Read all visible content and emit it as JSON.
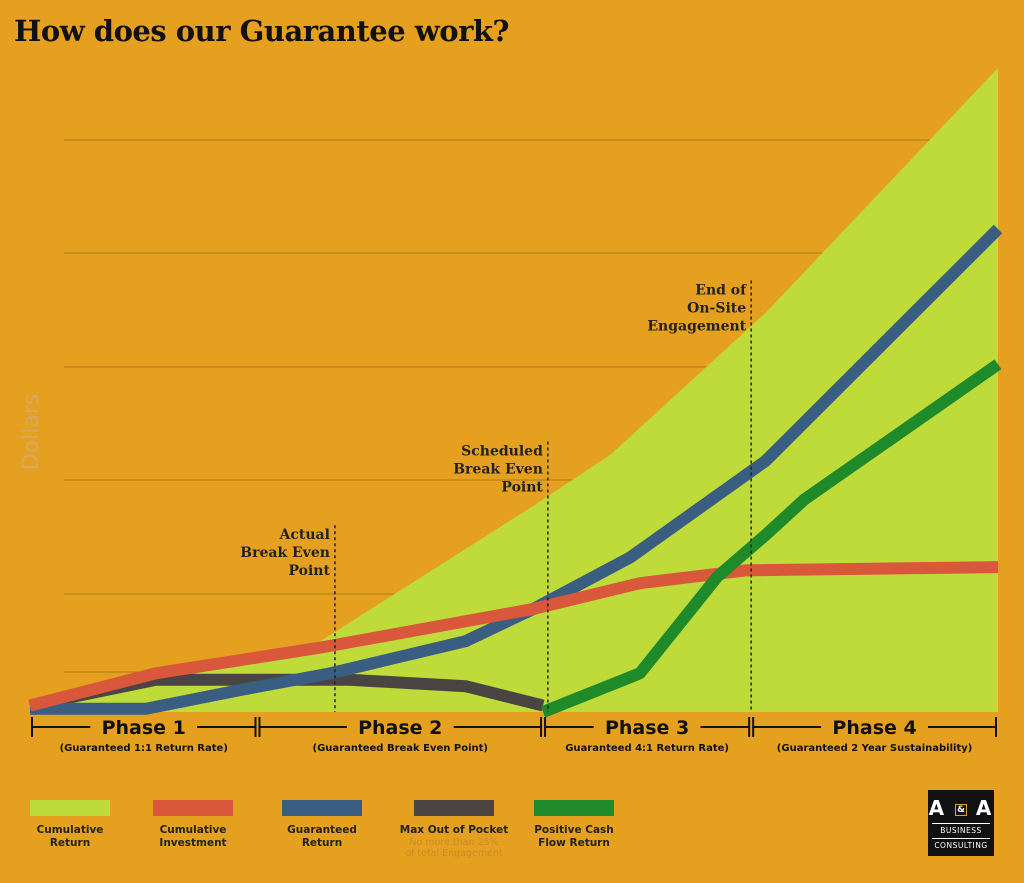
{
  "title": "How does our Guarantee work?",
  "colors": {
    "background": "#E5A020",
    "cumulative_return": "#BEDB3A",
    "cumulative_investment": "#D9573A",
    "guaranteed_return": "#3A5E82",
    "max_out_of_pocket": "#4A4542",
    "positive_cash_flow_return": "#1E8A2A"
  },
  "chart_data": {
    "type": "line",
    "ylabel": "Dollars",
    "xlabel": "",
    "x_range": [
      0,
      100
    ],
    "y_range": [
      0,
      100
    ],
    "grid": true,
    "series": [
      {
        "name": "Cumulative Return",
        "kind": "area",
        "points": [
          [
            0,
            0
          ],
          [
            30,
            11
          ],
          [
            52,
            32
          ],
          [
            60,
            40
          ],
          [
            76,
            62
          ],
          [
            100,
            100
          ]
        ]
      },
      {
        "name": "Cumulative Investment",
        "kind": "line",
        "points": [
          [
            0,
            1
          ],
          [
            13,
            6
          ],
          [
            30,
            10
          ],
          [
            52,
            16
          ],
          [
            63,
            20
          ],
          [
            74,
            22
          ],
          [
            100,
            22.5
          ]
        ]
      },
      {
        "name": "Guaranteed Return",
        "kind": "line",
        "points": [
          [
            0,
            0.5
          ],
          [
            12,
            0.5
          ],
          [
            22,
            3.5
          ],
          [
            31,
            6
          ],
          [
            45,
            11
          ],
          [
            52,
            16
          ],
          [
            62,
            24
          ],
          [
            76,
            39
          ],
          [
            100,
            75
          ]
        ]
      },
      {
        "name": "Max Out of Pocket",
        "kind": "line",
        "points": [
          [
            0,
            1
          ],
          [
            13,
            5
          ],
          [
            23,
            5
          ],
          [
            33,
            5
          ],
          [
            45,
            4
          ],
          [
            53,
            1
          ]
        ]
      },
      {
        "name": "Positive Cash Flow Return",
        "kind": "line",
        "points": [
          [
            53,
            0
          ],
          [
            63,
            6
          ],
          [
            71,
            21
          ],
          [
            76,
            27.5
          ],
          [
            80,
            33
          ],
          [
            100,
            54
          ]
        ]
      }
    ],
    "markers": [
      {
        "label_lines": [
          "Actual",
          "Break Even",
          "Point"
        ],
        "x": 31.5,
        "top": 29
      },
      {
        "label_lines": [
          "Scheduled",
          "Break Even",
          "Point"
        ],
        "x": 53.5,
        "top": 42
      },
      {
        "label_lines": [
          "End of",
          "On-Site",
          "Engagement"
        ],
        "x": 74.5,
        "top": 67
      }
    ],
    "phases": [
      {
        "label": "Phase 1",
        "subtitle": "(Guaranteed 1:1 Return Rate)",
        "start": 0,
        "end": 23.5
      },
      {
        "label": "Phase 2",
        "subtitle": "(Guaranteed Break Even Point)",
        "start": 23.5,
        "end": 53
      },
      {
        "label": "Phase 3",
        "subtitle": "Guaranteed 4:1 Return Rate)",
        "start": 53,
        "end": 74.5
      },
      {
        "label": "Phase 4",
        "subtitle": "(Guaranteed 2 Year Sustainability)",
        "start": 74.5,
        "end": 100
      }
    ]
  },
  "legend": [
    {
      "label": "Cumulative\nReturn",
      "note": "",
      "color_key": "cumulative_return"
    },
    {
      "label": "Cumulative\nInvestment",
      "note": "",
      "color_key": "cumulative_investment"
    },
    {
      "label": "Guaranteed\nReturn",
      "note": "",
      "color_key": "guaranteed_return"
    },
    {
      "label": "Max Out of Pocket",
      "note": "No more than 25%\nof total Engagement",
      "color_key": "max_out_of_pocket"
    },
    {
      "label": "Positive Cash\nFlow Return",
      "note": "",
      "color_key": "positive_cash_flow_return"
    }
  ],
  "logo": {
    "mark_left": "A",
    "mark_amp": "&",
    "mark_right": "A",
    "line1": "BUSINESS",
    "line2": "CONSULTING"
  }
}
